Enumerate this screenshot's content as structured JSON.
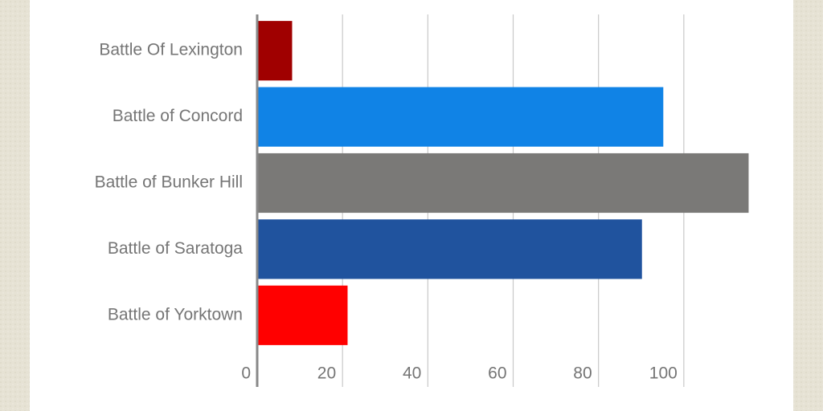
{
  "chart_data": {
    "type": "bar",
    "horizontal": true,
    "categories": [
      "Battle Of Lexington",
      "Battle of Concord",
      "Battle of Bunker Hill",
      "Battle of Saratoga",
      "Battle of Yorktown"
    ],
    "values": [
      8,
      95,
      115,
      90,
      21
    ],
    "colors": [
      "#a00000",
      "#1083e6",
      "#7a7977",
      "#20539e",
      "#ff0000"
    ],
    "xlim": [
      0,
      120
    ],
    "xticks": [
      0,
      20,
      40,
      60,
      80,
      100
    ],
    "grid": true
  }
}
